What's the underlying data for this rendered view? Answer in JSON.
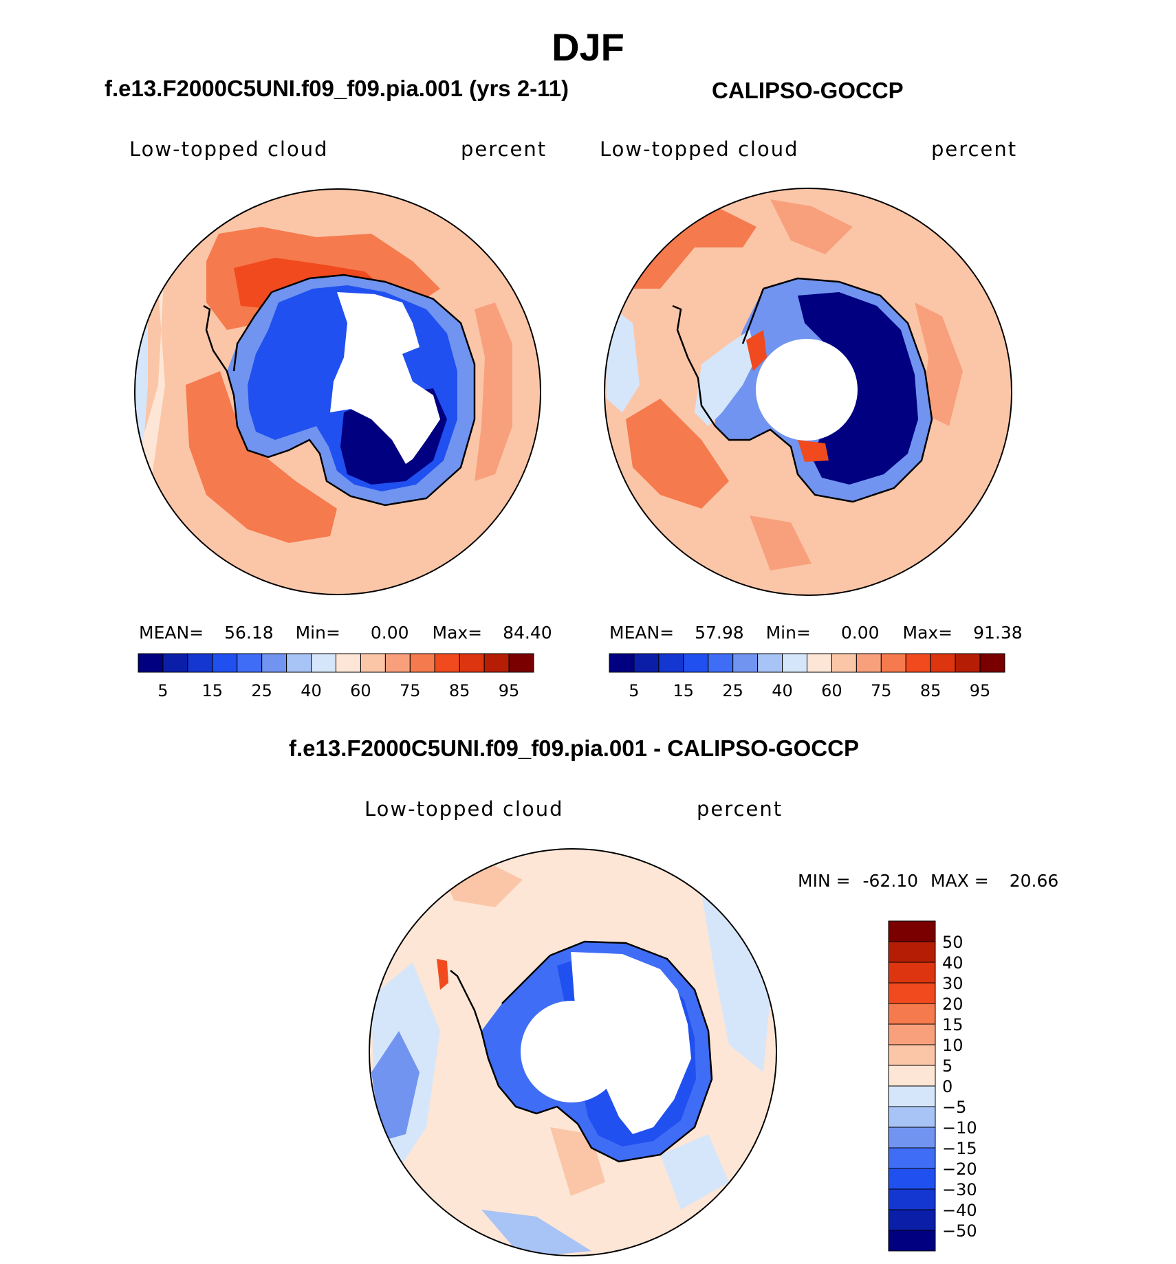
{
  "figure": {
    "season": "DJF",
    "model_title": "f.e13.F2000C5UNI.f09_f09.pia.001 (yrs 2-11)",
    "obs_title": "CALIPSO-GOCCP",
    "diff_title": "f.e13.F2000C5UNI.f09_f09.pia.001 - CALIPSO-GOCCP"
  },
  "panels": {
    "model": {
      "variable": "Low-topped cloud",
      "units": "percent",
      "mean_label": "MEAN=",
      "mean": "56.18",
      "min_label": "Min=",
      "min": "0.00",
      "max_label": "Max=",
      "max": "84.40"
    },
    "obs": {
      "variable": "Low-topped cloud",
      "units": "percent",
      "mean_label": "MEAN=",
      "mean": "57.98",
      "min_label": "Min=",
      "min": "0.00",
      "max_label": "Max=",
      "max": "91.38"
    },
    "diff": {
      "variable": "Low-topped cloud",
      "units": "percent",
      "min_label": "MIN =",
      "min": "-62.10",
      "max_label": "MAX =",
      "max": "20.66"
    }
  },
  "colors": {
    "abs_palette": [
      "#000080",
      "#0a1ea8",
      "#1437d2",
      "#2050f0",
      "#3f6df5",
      "#7194f0",
      "#a8c3f5",
      "#d6e6fa",
      "#fde6d6",
      "#fbc6a8",
      "#f8a07c",
      "#f57a4d",
      "#f04a1e",
      "#dd3510",
      "#b51e05",
      "#7a0000"
    ],
    "diff_palette": [
      "#000080",
      "#0a1ea8",
      "#1437d2",
      "#2050f0",
      "#3f6df5",
      "#7194f0",
      "#a8c3f5",
      "#d6e6fa",
      "#fde6d6",
      "#fbc6a8",
      "#f8a07c",
      "#f57a4d",
      "#f04a1e",
      "#dd3510",
      "#b51e05",
      "#7a0000"
    ],
    "land_outline": "#000000",
    "missing": "#ffffff"
  },
  "chart_data": [
    {
      "type": "heatmap",
      "projection": "south polar stereographic",
      "title": "f.e13.F2000C5UNI.f09_f09.pia.001 (yrs 2-11)",
      "variable": "Low-topped cloud",
      "units": "percent",
      "colorbar_levels": [
        5,
        10,
        15,
        20,
        25,
        30,
        40,
        50,
        60,
        70,
        75,
        80,
        85,
        90,
        95
      ],
      "colorbar_tick_labels": [
        "5",
        "15",
        "25",
        "40",
        "60",
        "75",
        "85",
        "95"
      ],
      "stats": {
        "mean": 56.18,
        "min": 0.0,
        "max": 84.4
      }
    },
    {
      "type": "heatmap",
      "projection": "south polar stereographic",
      "title": "CALIPSO-GOCCP",
      "variable": "Low-topped cloud",
      "units": "percent",
      "colorbar_levels": [
        5,
        10,
        15,
        20,
        25,
        30,
        40,
        50,
        60,
        70,
        75,
        80,
        85,
        90,
        95
      ],
      "colorbar_tick_labels": [
        "5",
        "15",
        "25",
        "40",
        "60",
        "75",
        "85",
        "95"
      ],
      "stats": {
        "mean": 57.98,
        "min": 0.0,
        "max": 91.38
      }
    },
    {
      "type": "heatmap",
      "projection": "south polar stereographic",
      "title": "f.e13.F2000C5UNI.f09_f09.pia.001 - CALIPSO-GOCCP",
      "variable": "Low-topped cloud",
      "units": "percent",
      "colorbar_levels": [
        50,
        40,
        30,
        20,
        15,
        10,
        5,
        0,
        -5,
        -10,
        -15,
        -20,
        -30,
        -40,
        -50
      ],
      "colorbar_tick_labels": [
        "50",
        "40",
        "30",
        "20",
        "15",
        "10",
        "5",
        "0",
        "−5",
        "−10",
        "−15",
        "−20",
        "−30",
        "−40",
        "−50"
      ],
      "stats": {
        "min": -62.1,
        "max": 20.66
      }
    }
  ]
}
